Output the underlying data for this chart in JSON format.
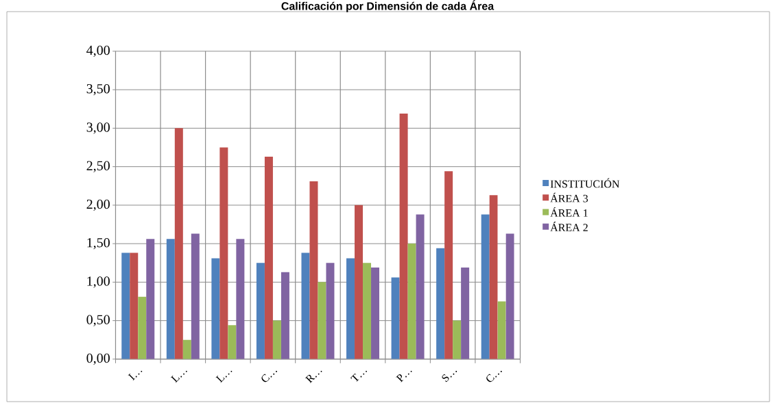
{
  "chart_data": {
    "type": "bar",
    "title": "Calificación por Dimensión de cada Área",
    "categories": [
      "I…",
      "L…",
      "L…",
      "C…",
      "R…",
      "T…",
      "P…",
      "S…",
      "C…"
    ],
    "series": [
      {
        "name": "INSTITUCIÓN",
        "color": "#4f81bd",
        "values": [
          1.38,
          1.56,
          1.31,
          1.25,
          1.38,
          1.31,
          1.06,
          1.44,
          1.88
        ]
      },
      {
        "name": "ÁREA 3",
        "color": "#c0504d",
        "values": [
          1.38,
          3.0,
          2.75,
          2.63,
          2.31,
          2.0,
          3.19,
          2.44,
          2.13
        ]
      },
      {
        "name": "ÁREA 1",
        "color": "#9bbb59",
        "values": [
          0.81,
          0.25,
          0.44,
          0.5,
          1.0,
          1.25,
          1.5,
          0.5,
          0.75
        ]
      },
      {
        "name": "ÁREA 2",
        "color": "#8064a2",
        "values": [
          1.56,
          1.63,
          1.56,
          1.13,
          1.25,
          1.19,
          1.88,
          1.19,
          1.63
        ]
      }
    ],
    "ylim": [
      0,
      4
    ],
    "yticks": [
      {
        "value": 0,
        "label": "0,00"
      },
      {
        "value": 0.5,
        "label": "0,50"
      },
      {
        "value": 1,
        "label": "1,00"
      },
      {
        "value": 1.5,
        "label": "1,50"
      },
      {
        "value": 2,
        "label": "2,00"
      },
      {
        "value": 2.5,
        "label": "2,50"
      },
      {
        "value": 3,
        "label": "3,00"
      },
      {
        "value": 3.5,
        "label": "3,50"
      },
      {
        "value": 4,
        "label": "4,00"
      }
    ],
    "grid": true,
    "legend": "right"
  }
}
